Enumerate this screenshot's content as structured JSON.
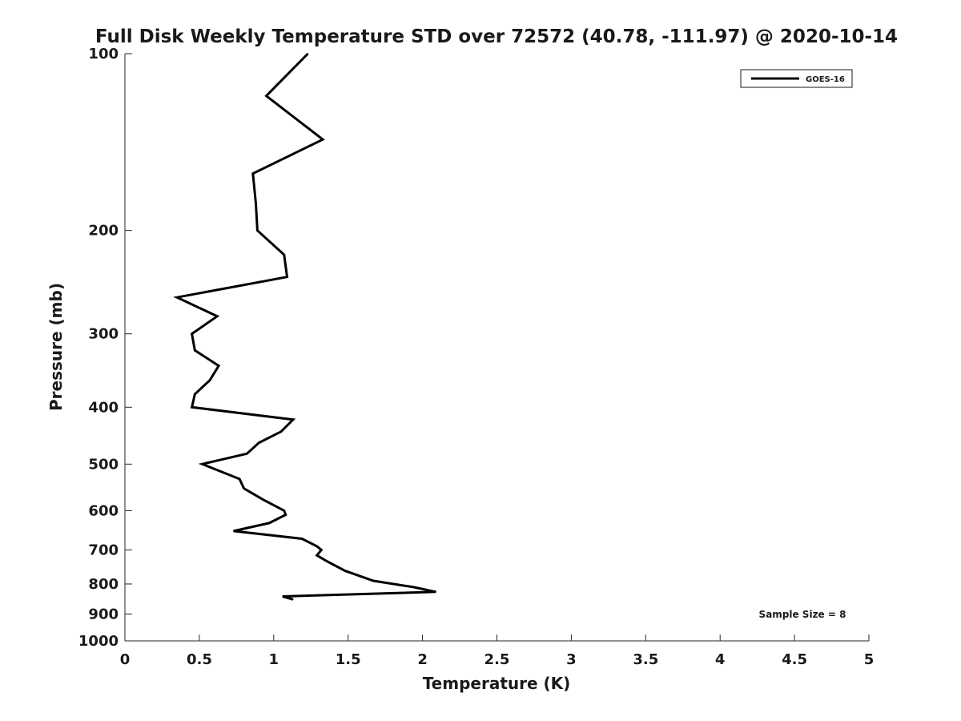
{
  "chart_data": {
    "type": "line",
    "title": "Full Disk Weekly Temperature STD over 72572 (40.78, -111.97) @ 2020-10-14",
    "xlabel": "Temperature (K)",
    "ylabel": "Pressure (mb)",
    "xlim": [
      0,
      5
    ],
    "ylim": [
      1000,
      100
    ],
    "y_scale": "log",
    "y_direction": "reversed",
    "grid": false,
    "legend_position": "top-right",
    "x_ticks": [
      "0",
      "0.5",
      "1",
      "1.5",
      "2",
      "2.5",
      "3",
      "3.5",
      "4",
      "4.5",
      "5"
    ],
    "y_ticks": [
      "100",
      "200",
      "300",
      "400",
      "500",
      "600",
      "700",
      "800",
      "900",
      "1000"
    ],
    "series": [
      {
        "name": "GOES-16",
        "color": "#000000",
        "points": [
          {
            "x": 1.23,
            "y": 100
          },
          {
            "x": 0.95,
            "y": 118
          },
          {
            "x": 1.33,
            "y": 140
          },
          {
            "x": 0.86,
            "y": 160
          },
          {
            "x": 0.88,
            "y": 180
          },
          {
            "x": 0.89,
            "y": 200
          },
          {
            "x": 1.07,
            "y": 220
          },
          {
            "x": 1.09,
            "y": 240
          },
          {
            "x": 0.35,
            "y": 260
          },
          {
            "x": 0.62,
            "y": 280
          },
          {
            "x": 0.45,
            "y": 300
          },
          {
            "x": 0.47,
            "y": 320
          },
          {
            "x": 0.63,
            "y": 340
          },
          {
            "x": 0.57,
            "y": 360
          },
          {
            "x": 0.47,
            "y": 380
          },
          {
            "x": 0.45,
            "y": 400
          },
          {
            "x": 1.13,
            "y": 420
          },
          {
            "x": 1.05,
            "y": 440
          },
          {
            "x": 0.9,
            "y": 460
          },
          {
            "x": 0.82,
            "y": 480
          },
          {
            "x": 0.52,
            "y": 500
          },
          {
            "x": 0.77,
            "y": 530
          },
          {
            "x": 0.8,
            "y": 550
          },
          {
            "x": 0.93,
            "y": 575
          },
          {
            "x": 1.07,
            "y": 600
          },
          {
            "x": 1.08,
            "y": 610
          },
          {
            "x": 0.97,
            "y": 630
          },
          {
            "x": 0.73,
            "y": 650
          },
          {
            "x": 1.19,
            "y": 670
          },
          {
            "x": 1.29,
            "y": 690
          },
          {
            "x": 1.32,
            "y": 700
          },
          {
            "x": 1.29,
            "y": 715
          },
          {
            "x": 1.35,
            "y": 730
          },
          {
            "x": 1.48,
            "y": 760
          },
          {
            "x": 1.67,
            "y": 790
          },
          {
            "x": 1.94,
            "y": 810
          },
          {
            "x": 2.09,
            "y": 825
          },
          {
            "x": 1.06,
            "y": 840
          },
          {
            "x": 1.13,
            "y": 850
          }
        ]
      }
    ],
    "annotations": [
      "Sample Size = 8"
    ]
  }
}
